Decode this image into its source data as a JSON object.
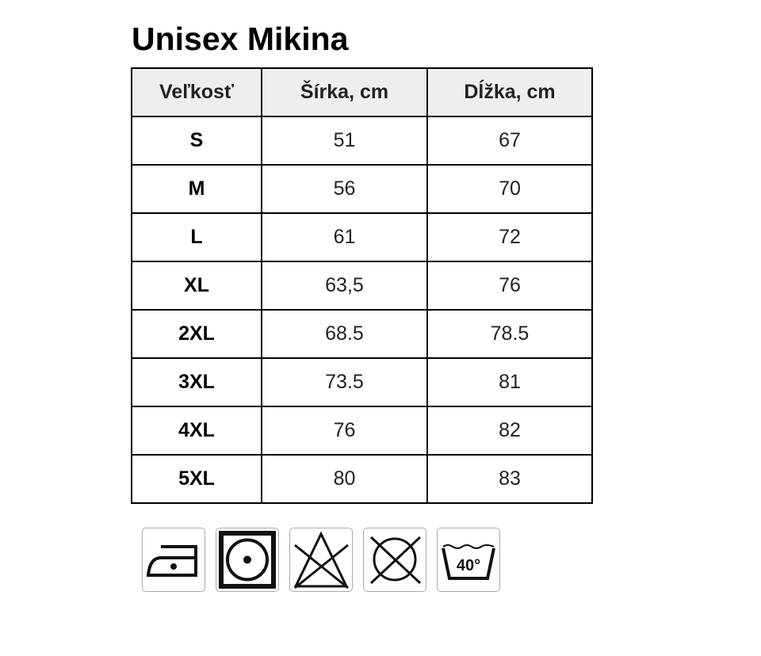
{
  "title": "Unisex Mikina",
  "table": {
    "headers": [
      "Veľkosť",
      "Šírka, cm",
      "Dĺžka, cm"
    ],
    "rows": [
      [
        "S",
        "51",
        "67"
      ],
      [
        "M",
        "56",
        "70"
      ],
      [
        "L",
        "61",
        "72"
      ],
      [
        "XL",
        "63,5",
        "76"
      ],
      [
        "2XL",
        "68.5",
        "78.5"
      ],
      [
        "3XL",
        "73.5",
        "81"
      ],
      [
        "4XL",
        "76",
        "82"
      ],
      [
        "5XL",
        "80",
        "83"
      ]
    ]
  },
  "care_icons": [
    {
      "icon": "iron-low-heat-icon"
    },
    {
      "icon": "tumble-dry-low-icon"
    },
    {
      "icon": "do-not-bleach-icon"
    },
    {
      "icon": "do-not-dry-clean-icon"
    },
    {
      "icon": "wash-40-icon",
      "label": "40°"
    }
  ]
}
